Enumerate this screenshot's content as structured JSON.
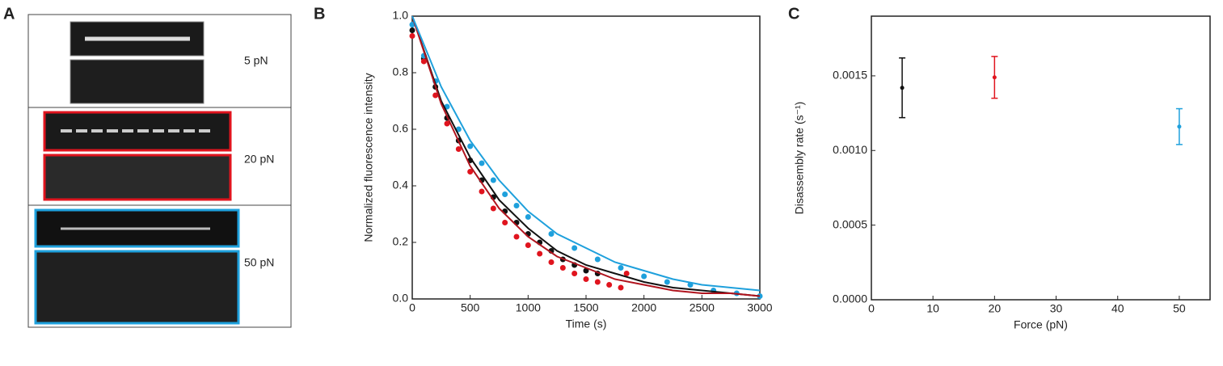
{
  "panel_a": {
    "label": "A",
    "forces": [
      "5 pN",
      "20 pN",
      "50 pN"
    ]
  },
  "chart_data": [
    {
      "type": "scatter",
      "label": "B",
      "xlabel": "Time (s)",
      "ylabel": "Normalized fluorescence intensity",
      "xlim": [
        0,
        3000
      ],
      "ylim": [
        0,
        1.0
      ],
      "xticks": [
        0,
        500,
        1000,
        1500,
        2000,
        2500,
        3000
      ],
      "yticks": [
        {
          "value": 0,
          "label": "0.0"
        },
        0.2,
        0.4,
        0.6,
        0.8,
        {
          "value": 1,
          "label": "1.0"
        }
      ],
      "series": [
        {
          "kind": "markers",
          "color": "#111111",
          "x": [
            0,
            100,
            200,
            300,
            400,
            500,
            600,
            700,
            800,
            900,
            1000,
            1100,
            1200,
            1300,
            1400,
            1500,
            1600
          ],
          "values": [
            0.95,
            0.85,
            0.75,
            0.64,
            0.56,
            0.49,
            0.42,
            0.36,
            0.31,
            0.27,
            0.23,
            0.2,
            0.17,
            0.14,
            0.12,
            0.1,
            0.09
          ]
        },
        {
          "kind": "markers",
          "color": "#e0141e",
          "x": [
            0,
            100,
            200,
            300,
            400,
            500,
            600,
            700,
            800,
            900,
            1000,
            1100,
            1200,
            1300,
            1400,
            1500,
            1600,
            1700,
            1800,
            1850
          ],
          "values": [
            0.93,
            0.84,
            0.72,
            0.62,
            0.53,
            0.45,
            0.38,
            0.32,
            0.27,
            0.22,
            0.19,
            0.16,
            0.13,
            0.11,
            0.09,
            0.07,
            0.06,
            0.05,
            0.04,
            0.09
          ]
        },
        {
          "kind": "markers",
          "color": "#1ea0dc",
          "x": [
            0,
            100,
            200,
            300,
            400,
            500,
            600,
            700,
            800,
            900,
            1000,
            1200,
            1400,
            1600,
            1800,
            2000,
            2200,
            2400,
            2600,
            2800,
            3000
          ],
          "values": [
            0.97,
            0.86,
            0.77,
            0.68,
            0.6,
            0.54,
            0.48,
            0.42,
            0.37,
            0.33,
            0.29,
            0.23,
            0.18,
            0.14,
            0.11,
            0.08,
            0.06,
            0.05,
            0.03,
            0.02,
            0.01
          ]
        },
        {
          "kind": "line",
          "color": "#111111",
          "x": [
            0,
            250,
            500,
            750,
            1000,
            1250,
            1500,
            1750,
            2000,
            2250,
            2500,
            2750,
            3000
          ],
          "values": [
            1.0,
            0.7,
            0.5,
            0.35,
            0.25,
            0.17,
            0.12,
            0.09,
            0.06,
            0.04,
            0.03,
            0.02,
            0.01
          ]
        },
        {
          "kind": "line",
          "color": "#b0141e",
          "x": [
            0,
            250,
            500,
            750,
            1000,
            1250,
            1500,
            1750,
            2000,
            2250,
            2500,
            2750,
            3000
          ],
          "values": [
            1.0,
            0.69,
            0.47,
            0.32,
            0.22,
            0.15,
            0.11,
            0.07,
            0.05,
            0.03,
            0.02,
            0.02,
            0.01
          ]
        },
        {
          "kind": "line",
          "color": "#1ea0dc",
          "x": [
            0,
            250,
            500,
            750,
            1000,
            1250,
            1500,
            1750,
            2000,
            2250,
            2500,
            2750,
            3000
          ],
          "values": [
            1.0,
            0.75,
            0.56,
            0.42,
            0.31,
            0.23,
            0.18,
            0.13,
            0.1,
            0.07,
            0.05,
            0.04,
            0.03
          ]
        }
      ]
    },
    {
      "type": "errorbar",
      "label": "C",
      "xlabel": "Force (pN)",
      "ylabel": "Disassembly rate (s⁻¹)",
      "xlim": [
        0,
        55
      ],
      "ylim": [
        0,
        0.0019
      ],
      "xticks": [
        0,
        10,
        20,
        30,
        40,
        50
      ],
      "yticks": [
        {
          "value": 0,
          "label": "0.0000"
        },
        0.0005,
        {
          "value": 0.001,
          "label": "0.0010"
        },
        0.0015
      ],
      "x": [
        5,
        20,
        50
      ],
      "values": [
        0.00142,
        0.00149,
        0.00116
      ],
      "errors": [
        0.0002,
        0.00014,
        0.00012
      ],
      "colors": [
        "#111111",
        "#e0141e",
        "#1ea0dc"
      ]
    }
  ]
}
